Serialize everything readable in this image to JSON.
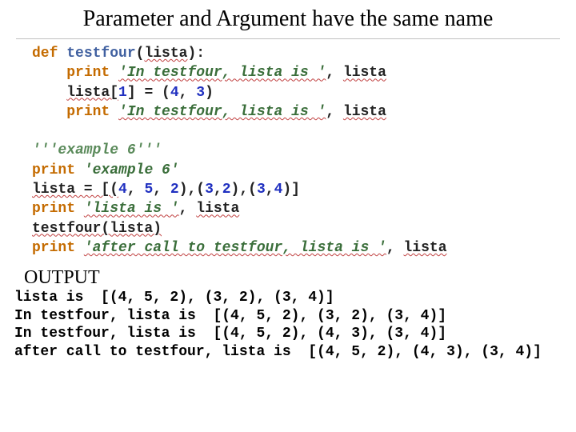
{
  "title": "Parameter and Argument have the same name",
  "code": {
    "line1": {
      "kw": "def",
      "fn": "testfour",
      "lp": "(",
      "param": "lista",
      "rp": "):"
    },
    "line2": {
      "kw": "print",
      "str": "'In testfour, lista is '",
      "comma": ", ",
      "id": "lista"
    },
    "line3": {
      "lhs": "lista[",
      "idx": "1",
      "rhs1": "] = (",
      "n1": "4",
      "c1": ", ",
      "n2": "3",
      "rhs2": ")"
    },
    "line4": {
      "kw": "print",
      "str": "'In testfour, lista is '",
      "comma": ", ",
      "id": "lista"
    },
    "line6": {
      "doc": "'''example 6'''"
    },
    "line7": {
      "kw": "print",
      "str": "'example 6'"
    },
    "line8": {
      "lhs": "lista = [(",
      "n1": "4",
      "c1": ", ",
      "n2": "5",
      "c2": ", ",
      "n3": "2",
      "m1": "),(",
      "n4": "3",
      "c3": ",",
      "n5": "2",
      "m2": "),(",
      "n6": "3",
      "c4": ",",
      "n7": "4",
      "rhs": ")]"
    },
    "line9": {
      "kw": "print",
      "str": "'lista is '",
      "comma": ", ",
      "id": "lista"
    },
    "line10": {
      "call": "testfour(lista)"
    },
    "line11": {
      "kw": "print",
      "str": "'after call to testfour, lista is '",
      "comma": ", ",
      "id": "lista"
    }
  },
  "outputLabel": "OUTPUT",
  "output": {
    "l1": "lista is  [(4, 5, 2), (3, 2), (3, 4)]",
    "l2": "In testfour, lista is  [(4, 5, 2), (3, 2), (3, 4)]",
    "l3": "In testfour, lista is  [(4, 5, 2), (4, 3), (3, 4)]",
    "l4": "after call to testfour, lista is  [(4, 5, 2), (4, 3), (3, 4)]"
  },
  "colors": {
    "keyword": "#c46b00",
    "string": "#3a6e3a",
    "number": "#2030c0",
    "text": "#222222",
    "squiggle": "#c04040",
    "background": "#ffffff"
  },
  "fonts": {
    "title_family": "Times New Roman",
    "title_size_pt": 21,
    "code_family": "Consolas",
    "code_size_pt": 13
  }
}
